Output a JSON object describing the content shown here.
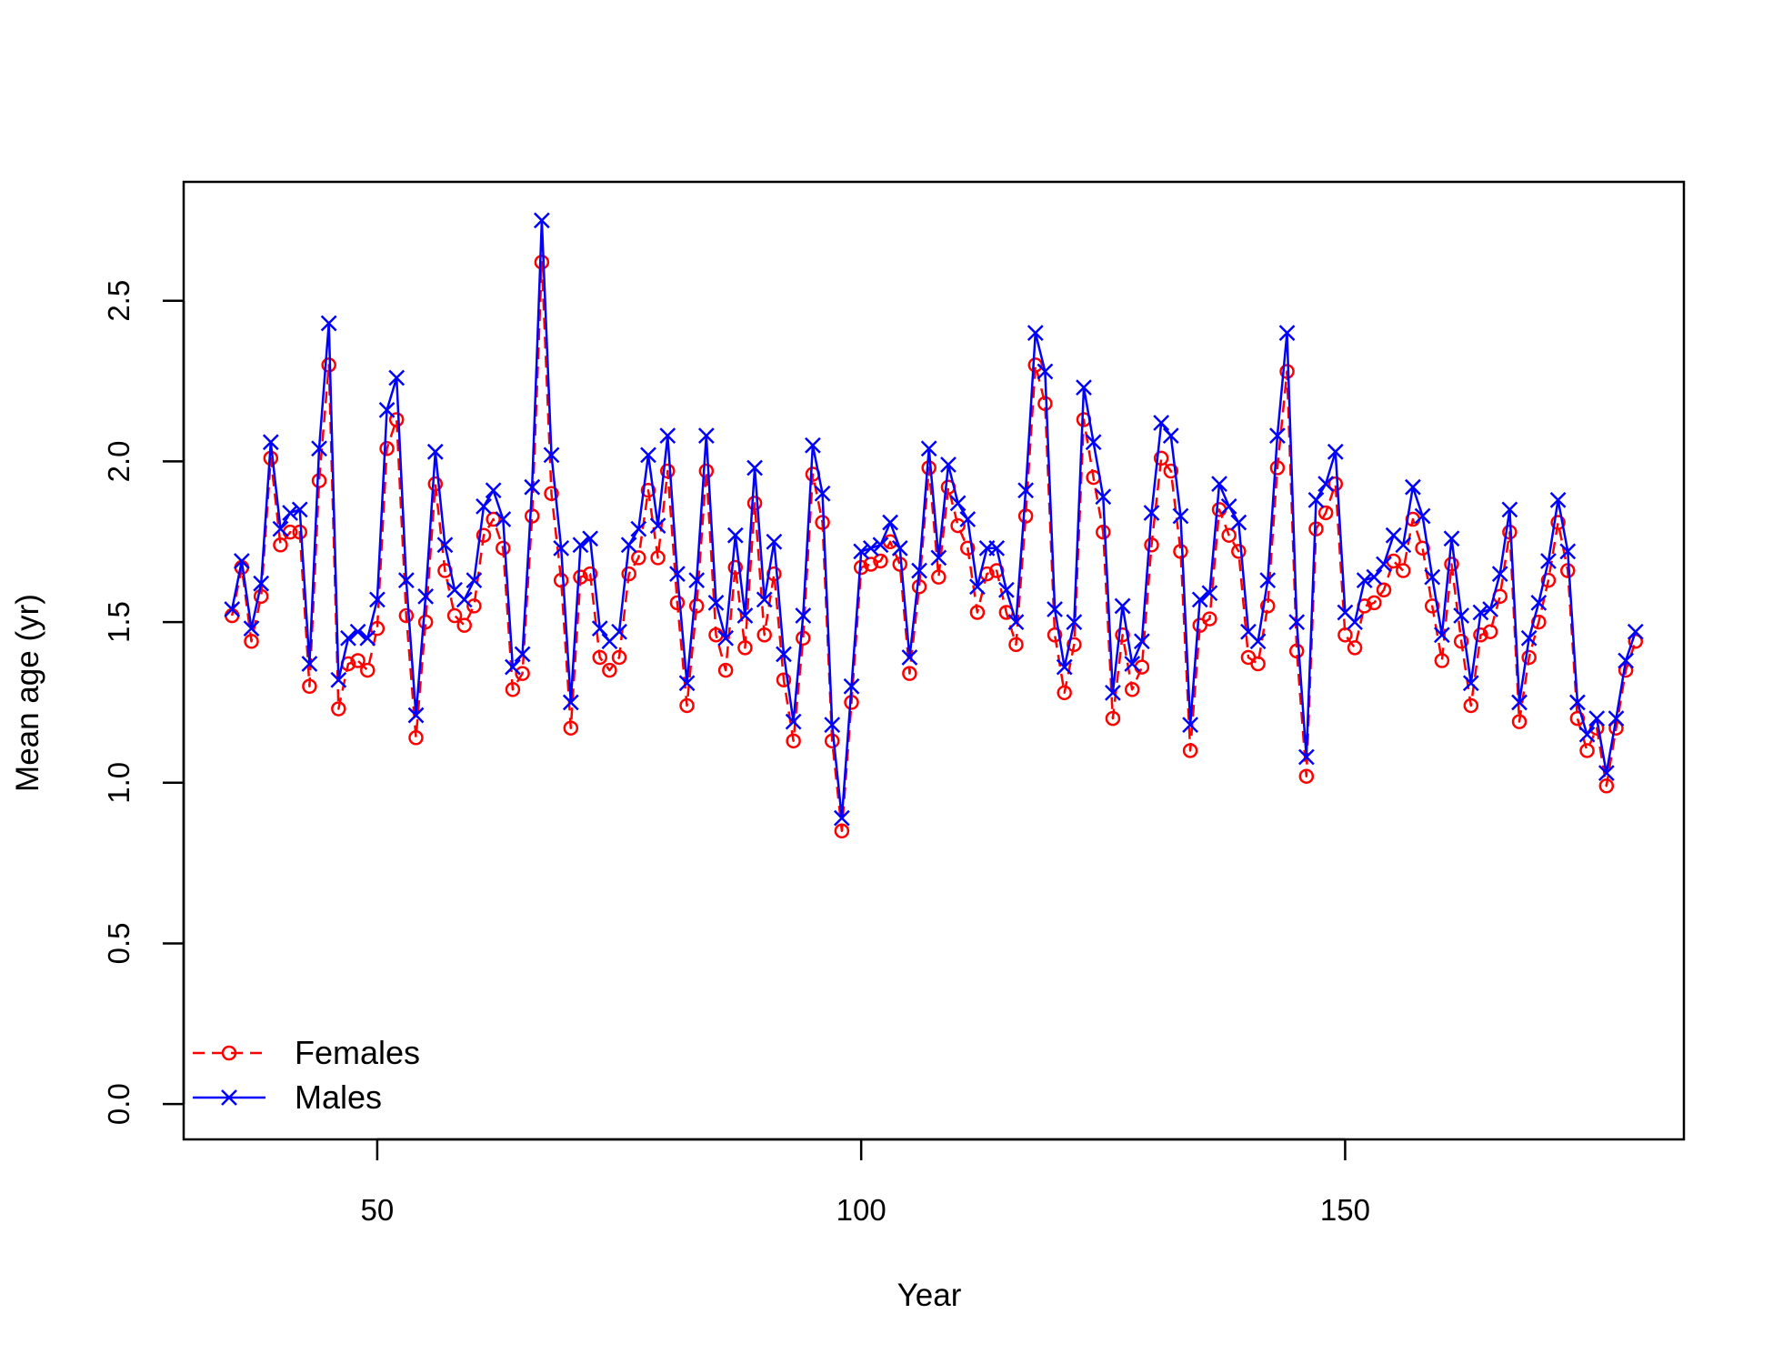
{
  "chart_data": {
    "type": "line",
    "title": "",
    "xlabel": "Year",
    "ylabel": "Mean age (yr)",
    "xlim": [
      30,
      185
    ],
    "ylim": [
      -0.11,
      2.87
    ],
    "xticks": [
      50,
      100,
      150
    ],
    "yticks": [
      0.0,
      0.5,
      1.0,
      1.5,
      2.0,
      2.5
    ],
    "ytick_labels": [
      "0.0",
      "0.5",
      "1.0",
      "1.5",
      "2.0",
      "2.5"
    ],
    "grid": false,
    "legend_position": "bottom-left",
    "x_start": 35,
    "series": [
      {
        "name": "Females",
        "color": "#ff0000",
        "line_style": "dashed",
        "marker": "circle",
        "values": [
          1.52,
          1.67,
          1.44,
          1.58,
          2.01,
          1.74,
          1.78,
          1.78,
          1.3,
          1.94,
          2.3,
          1.23,
          1.37,
          1.38,
          1.35,
          1.48,
          2.04,
          2.13,
          1.52,
          1.14,
          1.5,
          1.93,
          1.66,
          1.52,
          1.49,
          1.55,
          1.77,
          1.82,
          1.73,
          1.29,
          1.34,
          1.83,
          2.62,
          1.9,
          1.63,
          1.17,
          1.64,
          1.65,
          1.39,
          1.35,
          1.39,
          1.65,
          1.7,
          1.91,
          1.7,
          1.97,
          1.56,
          1.24,
          1.55,
          1.97,
          1.46,
          1.35,
          1.67,
          1.42,
          1.87,
          1.46,
          1.65,
          1.32,
          1.13,
          1.45,
          1.96,
          1.81,
          1.13,
          0.85,
          1.25,
          1.67,
          1.68,
          1.69,
          1.75,
          1.68,
          1.34,
          1.61,
          1.98,
          1.64,
          1.92,
          1.8,
          1.73,
          1.53,
          1.65,
          1.66,
          1.53,
          1.43,
          1.83,
          2.3,
          2.18,
          1.46,
          1.28,
          1.43,
          2.13,
          1.95,
          1.78,
          1.2,
          1.46,
          1.29,
          1.36,
          1.74,
          2.01,
          1.97,
          1.72,
          1.1,
          1.49,
          1.51,
          1.85,
          1.77,
          1.72,
          1.39,
          1.37,
          1.55,
          1.98,
          2.28,
          1.41,
          1.02,
          1.79,
          1.84,
          1.93,
          1.46,
          1.42,
          1.55,
          1.56,
          1.6,
          1.69,
          1.66,
          1.82,
          1.73,
          1.55,
          1.38,
          1.68,
          1.44,
          1.24,
          1.46,
          1.47,
          1.58,
          1.78,
          1.19,
          1.39,
          1.5,
          1.63,
          1.81,
          1.66,
          1.2,
          1.1,
          1.17,
          0.99,
          1.17,
          1.35,
          1.44
        ]
      },
      {
        "name": "Males",
        "color": "#0000ff",
        "line_style": "solid",
        "marker": "x",
        "values": [
          1.54,
          1.69,
          1.48,
          1.62,
          2.06,
          1.79,
          1.84,
          1.85,
          1.37,
          2.04,
          2.43,
          1.32,
          1.45,
          1.47,
          1.45,
          1.57,
          2.16,
          2.26,
          1.63,
          1.21,
          1.58,
          2.03,
          1.74,
          1.6,
          1.57,
          1.63,
          1.86,
          1.91,
          1.82,
          1.36,
          1.4,
          1.92,
          2.75,
          2.02,
          1.73,
          1.25,
          1.74,
          1.76,
          1.48,
          1.44,
          1.47,
          1.74,
          1.79,
          2.02,
          1.8,
          2.08,
          1.65,
          1.31,
          1.63,
          2.08,
          1.56,
          1.45,
          1.77,
          1.52,
          1.98,
          1.57,
          1.75,
          1.4,
          1.19,
          1.52,
          2.05,
          1.9,
          1.18,
          0.89,
          1.3,
          1.72,
          1.73,
          1.74,
          1.81,
          1.73,
          1.39,
          1.66,
          2.04,
          1.7,
          1.99,
          1.87,
          1.82,
          1.61,
          1.73,
          1.73,
          1.6,
          1.5,
          1.91,
          2.4,
          2.28,
          1.54,
          1.36,
          1.5,
          2.23,
          2.06,
          1.89,
          1.28,
          1.55,
          1.37,
          1.44,
          1.84,
          2.12,
          2.08,
          1.83,
          1.18,
          1.57,
          1.59,
          1.93,
          1.86,
          1.81,
          1.47,
          1.44,
          1.63,
          2.08,
          2.4,
          1.5,
          1.08,
          1.88,
          1.93,
          2.03,
          1.53,
          1.5,
          1.63,
          1.64,
          1.68,
          1.77,
          1.74,
          1.92,
          1.83,
          1.64,
          1.46,
          1.76,
          1.52,
          1.31,
          1.53,
          1.54,
          1.65,
          1.85,
          1.25,
          1.45,
          1.56,
          1.69,
          1.88,
          1.72,
          1.25,
          1.15,
          1.2,
          1.03,
          1.2,
          1.38,
          1.47
        ]
      }
    ]
  }
}
